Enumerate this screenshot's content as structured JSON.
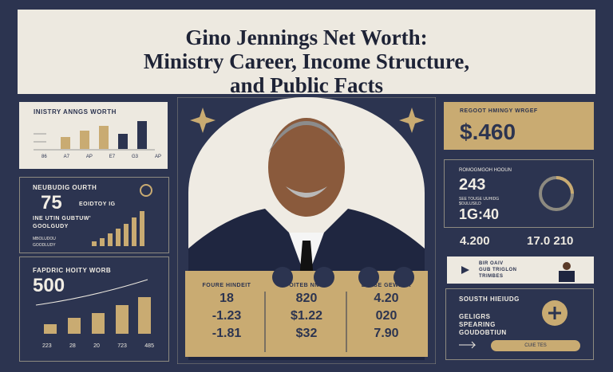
{
  "header": {
    "title_lines": [
      "Gino Jennings Net Worth:",
      "Ministry Career, Income Structure,",
      "and Public Facts"
    ]
  },
  "left": {
    "panel1": {
      "title": "INISTRY ANNGS WORTH",
      "labels": [
        "86",
        "A7",
        "AP",
        "E7",
        "G3",
        "AP"
      ]
    },
    "panel2": {
      "title": "NEUBUDIG OURTH",
      "big": "75",
      "side": "EOIDTOY IG",
      "lines": [
        "INE UTIN GUBTUW'",
        "GOOLGUDY"
      ],
      "small": [
        "MBOLUDOU",
        "GOODLUDY"
      ]
    },
    "panel3": {
      "title": "FAPDRIC HOITY WORB",
      "big": "500",
      "labels": [
        "223",
        "28",
        "20",
        "723",
        "485"
      ]
    }
  },
  "center": {
    "columns": [
      {
        "heading": "FOURE HINDEIT",
        "rows": [
          "18",
          "-1.23",
          "-1.81"
        ]
      },
      {
        "heading": "FOITEB NNUS",
        "rows": [
          "820",
          "$1.22",
          "$32"
        ]
      },
      {
        "heading": "ELASE GEWEER",
        "rows": [
          "4.20",
          "020",
          "7.90"
        ]
      }
    ]
  },
  "right": {
    "panel1": {
      "title": "REGOOT HMINGY WRGEF",
      "big": "$.460"
    },
    "panel2": {
      "title": "ROMOGMGOH HOOUN",
      "big": "243",
      "lines": [
        "SEE TOUGE UUHIDG",
        "$OULUSILD"
      ],
      "big2": "1G:40"
    },
    "row": [
      "4.200",
      "17.0 210"
    ],
    "panel3": {
      "lines": [
        "BIR OAIV",
        "GUB TRIGLON",
        "TRIMBES"
      ]
    },
    "panel4": {
      "title": "SOUSTH HIEIUDG",
      "lines": [
        "GELIGRS",
        "SPEARING",
        "GOUDOBTIUN"
      ],
      "button": "CUIE TES"
    }
  }
}
